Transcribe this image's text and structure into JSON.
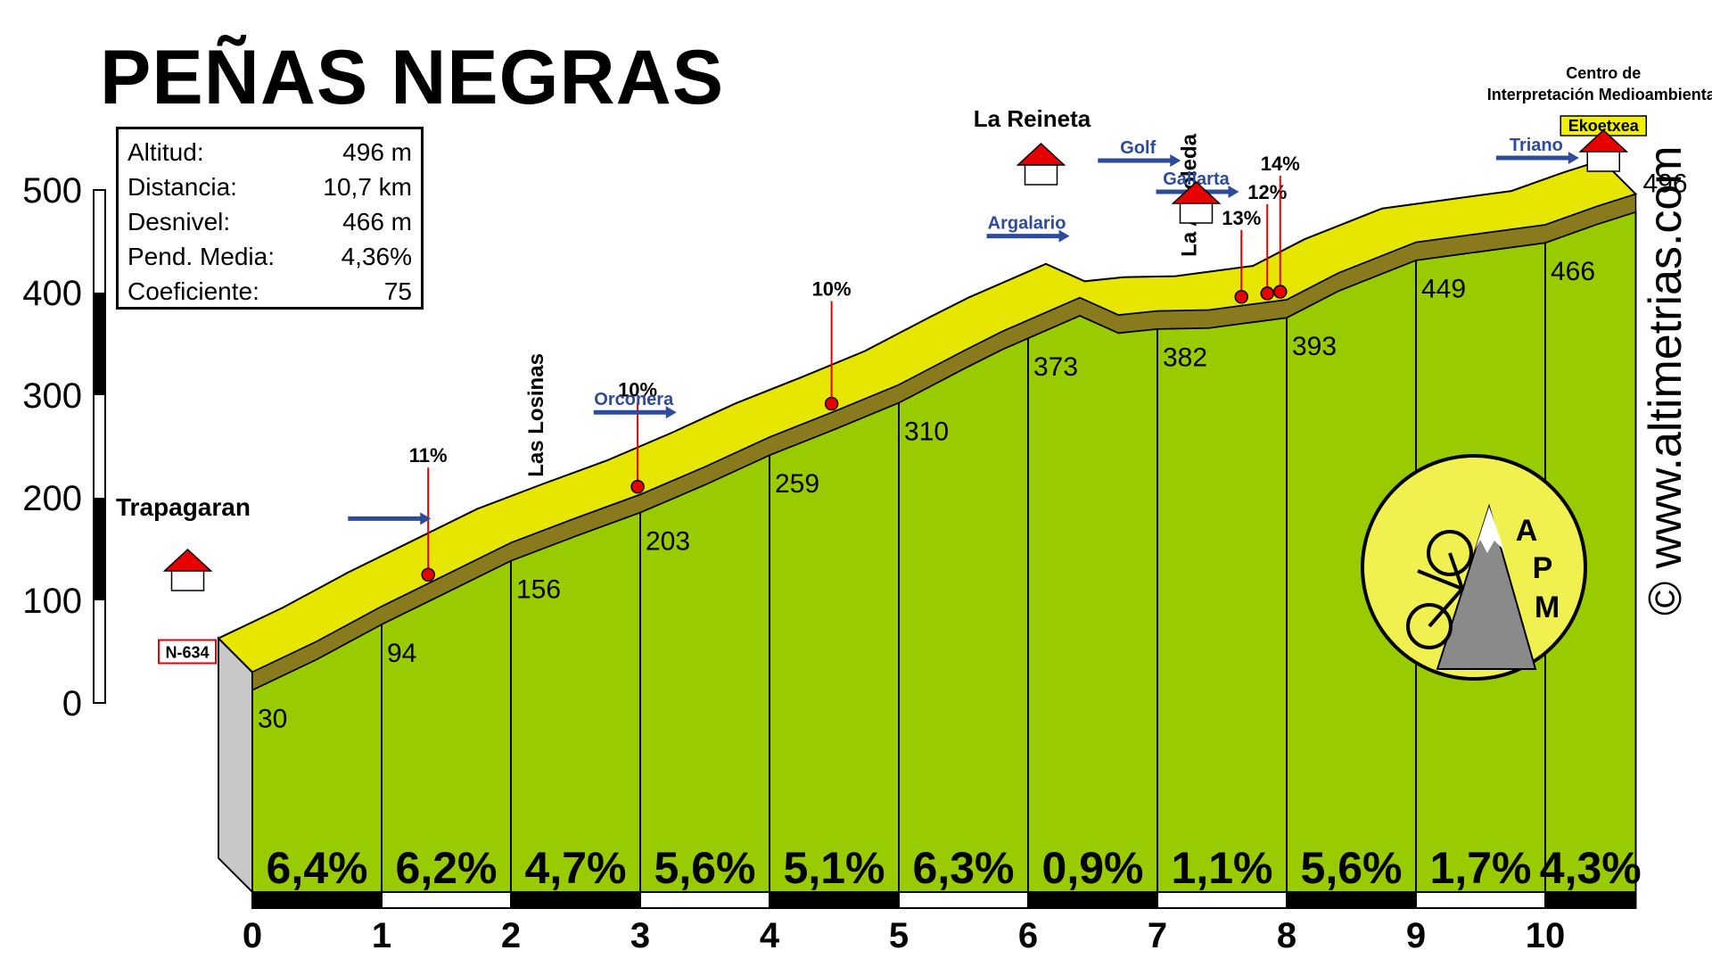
{
  "title": "PEÑAS NEGRAS",
  "stats": [
    {
      "label": "Altitud:",
      "value": "496 m"
    },
    {
      "label": "Distancia:",
      "value": "10,7 km"
    },
    {
      "label": "Desnivel:",
      "value": "466 m"
    },
    {
      "label": "Pend. Media:",
      "value": "4,36%"
    },
    {
      "label": "Coeficiente:",
      "value": "75"
    }
  ],
  "watermark": "© www.altimetrias.com",
  "logo_text": [
    "A",
    "P",
    "M"
  ],
  "colors": {
    "fill": "#99cc00",
    "road": "#e6e600",
    "road_dark": "#8a7a1e",
    "marker": "#e60000",
    "arrow": "#2e4a9a",
    "gray": "#c8c8c8"
  },
  "chart_data": {
    "type": "area",
    "xlim": [
      0,
      10.7
    ],
    "ylim": [
      0,
      500
    ],
    "y_ticks": [
      0,
      100,
      200,
      300,
      400,
      500
    ],
    "x_ticks": [
      0,
      1,
      2,
      3,
      4,
      5,
      6,
      7,
      8,
      9,
      10
    ],
    "profile": [
      {
        "x": 0,
        "y": 30
      },
      {
        "x": 0.5,
        "y": 60
      },
      {
        "x": 1,
        "y": 94
      },
      {
        "x": 1.5,
        "y": 125
      },
      {
        "x": 2,
        "y": 156
      },
      {
        "x": 2.5,
        "y": 180
      },
      {
        "x": 3,
        "y": 203
      },
      {
        "x": 3.5,
        "y": 230
      },
      {
        "x": 4,
        "y": 259
      },
      {
        "x": 4.5,
        "y": 284
      },
      {
        "x": 5,
        "y": 310
      },
      {
        "x": 5.5,
        "y": 343
      },
      {
        "x": 5.8,
        "y": 362
      },
      {
        "x": 6,
        "y": 373
      },
      {
        "x": 6.4,
        "y": 395
      },
      {
        "x": 6.7,
        "y": 378
      },
      {
        "x": 7,
        "y": 382
      },
      {
        "x": 7.4,
        "y": 383
      },
      {
        "x": 8,
        "y": 393
      },
      {
        "x": 8.4,
        "y": 419
      },
      {
        "x": 9,
        "y": 449
      },
      {
        "x": 10,
        "y": 466
      },
      {
        "x": 10.4,
        "y": 484
      },
      {
        "x": 10.7,
        "y": 496
      }
    ],
    "segments": [
      {
        "from": 0,
        "to": 1,
        "label": "6,4%"
      },
      {
        "from": 1,
        "to": 2,
        "label": "6,2%"
      },
      {
        "from": 2,
        "to": 3,
        "label": "4,7%"
      },
      {
        "from": 3,
        "to": 4,
        "label": "5,6%"
      },
      {
        "from": 4,
        "to": 5,
        "label": "5,1%"
      },
      {
        "from": 5,
        "to": 6,
        "label": "6,3%"
      },
      {
        "from": 6,
        "to": 7,
        "label": "0,9%"
      },
      {
        "from": 7,
        "to": 8,
        "label": "1,1%"
      },
      {
        "from": 8,
        "to": 9,
        "label": "5,6%"
      },
      {
        "from": 9,
        "to": 10,
        "label": "1,7%"
      },
      {
        "from": 10,
        "to": 10.7,
        "label": "4,3%"
      }
    ],
    "km_altitudes": [
      {
        "x": 0,
        "label": "30"
      },
      {
        "x": 1,
        "label": "94"
      },
      {
        "x": 2,
        "label": "156"
      },
      {
        "x": 3,
        "label": "203"
      },
      {
        "x": 4,
        "label": "259"
      },
      {
        "x": 5,
        "label": "310"
      },
      {
        "x": 6,
        "label": "373"
      },
      {
        "x": 7,
        "label": "382"
      },
      {
        "x": 8,
        "label": "393"
      },
      {
        "x": 9,
        "label": "449"
      },
      {
        "x": 10,
        "label": "466"
      }
    ],
    "summit_label": "496",
    "max_gradients": [
      {
        "x": 1.36,
        "label": "11%"
      },
      {
        "x": 2.98,
        "label": "10%"
      },
      {
        "x": 4.48,
        "label": "10%"
      },
      {
        "x": 7.65,
        "label": "13%"
      },
      {
        "x": 7.85,
        "label": "12%"
      },
      {
        "x": 7.95,
        "label": "14%"
      }
    ],
    "places": [
      {
        "x": -0.12,
        "label": "Trapagaran"
      },
      {
        "x": 2.25,
        "label": "Las Losinas",
        "vertical": true
      },
      {
        "x": 6.1,
        "label": "La Reineta"
      },
      {
        "x": 7.3,
        "label": "La Arboleda",
        "vertical": true
      },
      {
        "x": 10.45,
        "label": "Centro de"
      },
      {
        "x": 10.45,
        "label": "Interpretación Medioambiental"
      },
      {
        "x": 10.45,
        "label": "Ekoetxea",
        "highlight": true
      }
    ],
    "directions": [
      {
        "x": 1.05,
        "label": ""
      },
      {
        "x": 2.95,
        "label": "Orconera"
      },
      {
        "x": 5.99,
        "label": "Argalario"
      },
      {
        "x": 7.3,
        "label": "Gallarta"
      },
      {
        "x": 6.85,
        "label": "Golf"
      },
      {
        "x": 9.93,
        "label": "Triano"
      }
    ],
    "road_label": "N-634"
  }
}
